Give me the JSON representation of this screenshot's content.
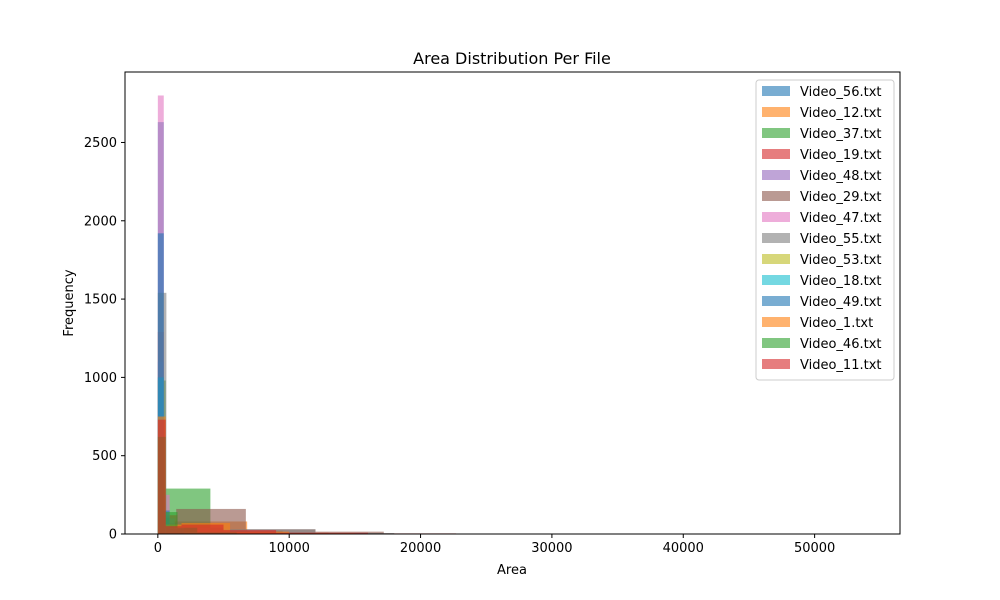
{
  "chart_data": {
    "type": "histogram",
    "title": "Area Distribution Per File",
    "xlabel": "Area",
    "ylabel": "Frequency",
    "xlim": [
      -2500,
      56500
    ],
    "ylim": [
      0,
      2950
    ],
    "xticks": [
      0,
      10000,
      20000,
      30000,
      40000,
      50000
    ],
    "xtick_labels": [
      "0",
      "10000",
      "20000",
      "30000",
      "40000",
      "50000"
    ],
    "yticks": [
      0,
      500,
      1000,
      1500,
      2000,
      2500
    ],
    "ytick_labels": [
      "0",
      "500",
      "1000",
      "1500",
      "2000",
      "2500"
    ],
    "grid": false,
    "legend_position": "top-right",
    "bar_opacity": 0.6,
    "series": [
      {
        "name": "Video_56.txt",
        "color": "#1f77b4",
        "bins": [
          [
            0,
            450,
            2630
          ],
          [
            450,
            900,
            110
          ],
          [
            900,
            1800,
            35
          ],
          [
            1800,
            3000,
            10
          ],
          [
            3000,
            4500,
            4
          ]
        ]
      },
      {
        "name": "Video_12.txt",
        "color": "#ff7f0e",
        "bins": [
          [
            0,
            450,
            480
          ],
          [
            450,
            1200,
            60
          ],
          [
            1200,
            6800,
            80
          ],
          [
            6800,
            9500,
            20
          ],
          [
            9500,
            13000,
            8
          ],
          [
            13000,
            20000,
            3
          ]
        ]
      },
      {
        "name": "Video_37.txt",
        "color": "#2ca02c",
        "bins": [
          [
            0,
            600,
            980
          ],
          [
            600,
            4000,
            290
          ],
          [
            4000,
            7000,
            20
          ],
          [
            7000,
            12000,
            5
          ],
          [
            33000,
            36800,
            2
          ]
        ]
      },
      {
        "name": "Video_19.txt",
        "color": "#d62728",
        "bins": [
          [
            0,
            450,
            1290
          ],
          [
            450,
            1500,
            120
          ],
          [
            1500,
            5000,
            40
          ],
          [
            5000,
            12000,
            10
          ],
          [
            12000,
            22700,
            4
          ]
        ]
      },
      {
        "name": "Video_48.txt",
        "color": "#9467bd",
        "bins": [
          [
            0,
            450,
            1100
          ],
          [
            450,
            900,
            60
          ],
          [
            900,
            2500,
            20
          ],
          [
            2500,
            5000,
            5
          ]
        ]
      },
      {
        "name": "Video_29.txt",
        "color": "#8c564b",
        "bins": [
          [
            0,
            450,
            1000
          ],
          [
            450,
            1400,
            70
          ],
          [
            1400,
            6700,
            160
          ],
          [
            6700,
            12000,
            30
          ],
          [
            12000,
            17200,
            15
          ],
          [
            48500,
            54000,
            2
          ]
        ]
      },
      {
        "name": "Video_47.txt",
        "color": "#e377c2",
        "bins": [
          [
            0,
            450,
            2800
          ],
          [
            450,
            900,
            250
          ],
          [
            900,
            2000,
            40
          ],
          [
            2000,
            4000,
            8
          ]
        ]
      },
      {
        "name": "Video_55.txt",
        "color": "#7f7f7f",
        "bins": [
          [
            0,
            650,
            1540
          ],
          [
            650,
            1300,
            100
          ],
          [
            1300,
            5000,
            40
          ],
          [
            5000,
            12000,
            30
          ],
          [
            12000,
            18000,
            6
          ]
        ]
      },
      {
        "name": "Video_53.txt",
        "color": "#bcbd22",
        "bins": [
          [
            0,
            450,
            600
          ],
          [
            450,
            1000,
            40
          ],
          [
            1000,
            3000,
            10
          ]
        ]
      },
      {
        "name": "Video_18.txt",
        "color": "#17becf",
        "bins": [
          [
            0,
            450,
            1000
          ],
          [
            450,
            1200,
            40
          ],
          [
            1200,
            3000,
            10
          ]
        ]
      },
      {
        "name": "Video_49.txt",
        "color": "#1f77b4",
        "bins": [
          [
            0,
            450,
            1920
          ],
          [
            450,
            900,
            150
          ],
          [
            900,
            2000,
            30
          ],
          [
            2000,
            5000,
            5
          ]
        ]
      },
      {
        "name": "Video_1.txt",
        "color": "#ff7f0e",
        "bins": [
          [
            0,
            600,
            750
          ],
          [
            600,
            1800,
            60
          ],
          [
            1800,
            5500,
            70
          ],
          [
            5500,
            10000,
            15
          ],
          [
            10000,
            15000,
            5
          ]
        ]
      },
      {
        "name": "Video_46.txt",
        "color": "#2ca02c",
        "bins": [
          [
            0,
            600,
            620
          ],
          [
            600,
            1500,
            140
          ],
          [
            1500,
            3000,
            40
          ],
          [
            3000,
            6000,
            10
          ]
        ]
      },
      {
        "name": "Video_11.txt",
        "color": "#d62728",
        "bins": [
          [
            0,
            600,
            730
          ],
          [
            600,
            1800,
            50
          ],
          [
            1800,
            5000,
            60
          ],
          [
            5000,
            9000,
            25
          ],
          [
            9000,
            16000,
            8
          ]
        ]
      }
    ]
  }
}
